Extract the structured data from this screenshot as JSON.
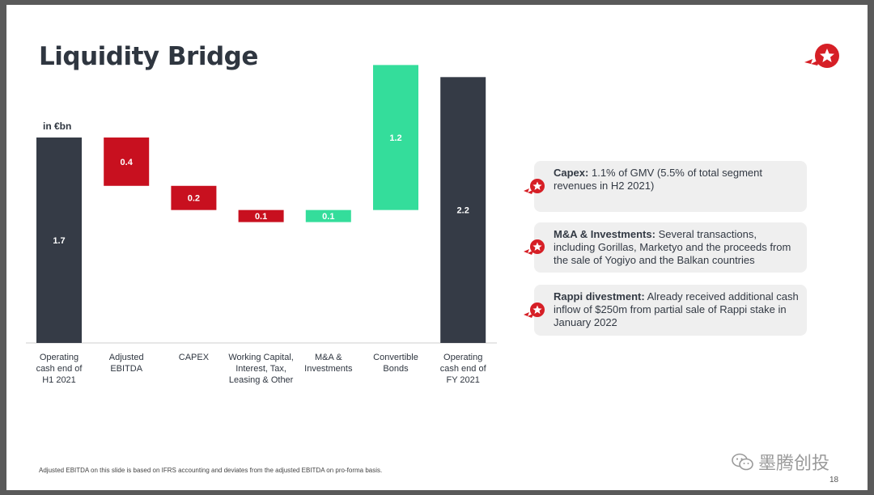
{
  "slide": {
    "title": "Liquidity Bridge",
    "unit_label": "in €bn",
    "footnote": "Adjusted EBITDA on this slide is based on IFRS accounting and deviates from the adjusted EBITDA on pro-forma basis.",
    "page_number": "18",
    "watermark_text": "墨腾创投"
  },
  "colors": {
    "dark": "#353b46",
    "red": "#c8101f",
    "green": "#34dd9b",
    "brand_red": "#d61f26"
  },
  "chart_data": {
    "type": "bar",
    "subtype": "waterfall",
    "unit": "€bn",
    "categories": [
      "Operating cash end of H1 2021",
      "Adjusted EBITDA",
      "CAPEX",
      "Working Capital, Interest, Tax, Leasing & Other",
      "M&A & Investments",
      "Convertible Bonds",
      "Operating cash end of FY 2021"
    ],
    "category_lines": [
      [
        "Operating",
        "cash end of",
        "H1 2021"
      ],
      [
        "Adjusted",
        "EBITDA"
      ],
      [
        "CAPEX"
      ],
      [
        "Working Capital,",
        "Interest, Tax,",
        "Leasing & Other"
      ],
      [
        "M&A &",
        "Investments"
      ],
      [
        "Convertible",
        "Bonds"
      ],
      [
        "Operating",
        "cash end of",
        "FY 2021"
      ]
    ],
    "values": [
      1.7,
      -0.4,
      -0.2,
      -0.1,
      0.1,
      1.2,
      2.2
    ],
    "labels": [
      "1.7",
      "0.4",
      "0.2",
      "0.1",
      "0.1",
      "1.2",
      "2.2"
    ],
    "bar_types": [
      "total",
      "decrease",
      "decrease",
      "decrease",
      "increase",
      "increase",
      "total"
    ]
  },
  "cards": [
    {
      "heading": "Capex:",
      "text": "1.1% of GMV (5.5% of total segment revenues in H2 2021)",
      "icon": "rocket-icon"
    },
    {
      "heading": "M&A & Investments:",
      "text": "Several transactions, including Gorillas, Marketyo and the proceeds from the sale of Yogiyo and the Balkan countries",
      "icon": "rocket-icon"
    },
    {
      "heading": "Rappi divestment:",
      "text": "Already received additional cash inflow of $250m from partial sale of Rappi stake in January 2022",
      "icon": "rocket-icon"
    }
  ]
}
